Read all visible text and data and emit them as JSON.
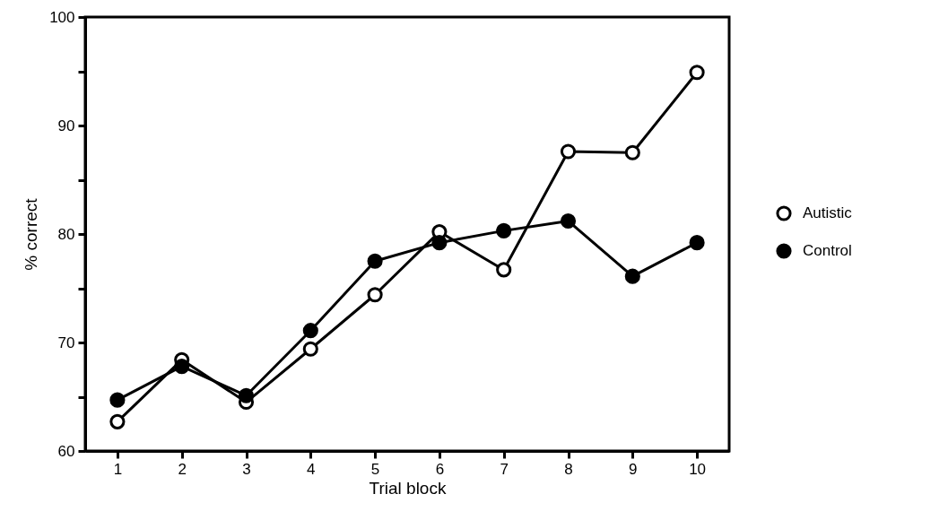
{
  "chart_data": {
    "type": "line",
    "xlabel": "Trial block",
    "ylabel": "% correct",
    "categories": [
      "1",
      "2",
      "3",
      "4",
      "5",
      "6",
      "7",
      "8",
      "9",
      "10"
    ],
    "series": [
      {
        "name": "Autistic",
        "color": "#000000",
        "marker": "circle-open",
        "values": [
          62.7,
          68.4,
          64.5,
          69.4,
          74.4,
          80.2,
          76.7,
          87.6,
          87.5,
          94.9
        ]
      },
      {
        "name": "Control",
        "color": "#000000",
        "marker": "circle",
        "values": [
          64.7,
          67.8,
          65.1,
          71.1,
          77.5,
          79.2,
          80.3,
          81.2,
          76.1,
          79.2
        ]
      }
    ],
    "ylim": [
      60,
      100
    ],
    "yticks": [
      60,
      {
        "value": 65,
        "label": null
      },
      70,
      {
        "value": 75,
        "label": null
      },
      80,
      {
        "value": 85,
        "label": null
      },
      90,
      {
        "value": 95,
        "label": null
      },
      100
    ],
    "grid": false,
    "legend": "right",
    "marker": "circle",
    "line_style": "solid"
  }
}
